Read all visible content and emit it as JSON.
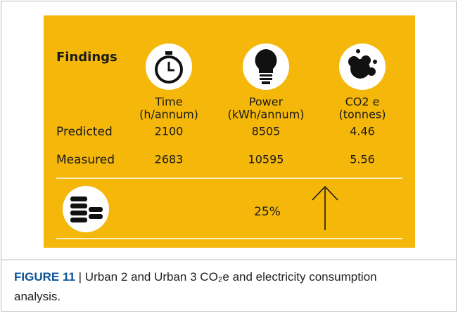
{
  "figure": {
    "title": "Findings",
    "columns": [
      {
        "header": [
          "Time",
          "(h/annum)"
        ]
      },
      {
        "header": [
          "Power",
          "(kWh/annum)"
        ]
      },
      {
        "header": [
          "CO2 e",
          "(tonnes)"
        ]
      }
    ],
    "rows": [
      {
        "label": "Predicted",
        "cells": [
          2100,
          8505,
          4.46
        ]
      },
      {
        "label": "Measured",
        "cells": [
          2683,
          10595,
          5.56
        ]
      }
    ],
    "summary": "25%",
    "caption": {
      "label": "FIGURE 11",
      "text": "| Urban 2 and Urban 3 CO₂e and electricity consumption analysis."
    }
  }
}
